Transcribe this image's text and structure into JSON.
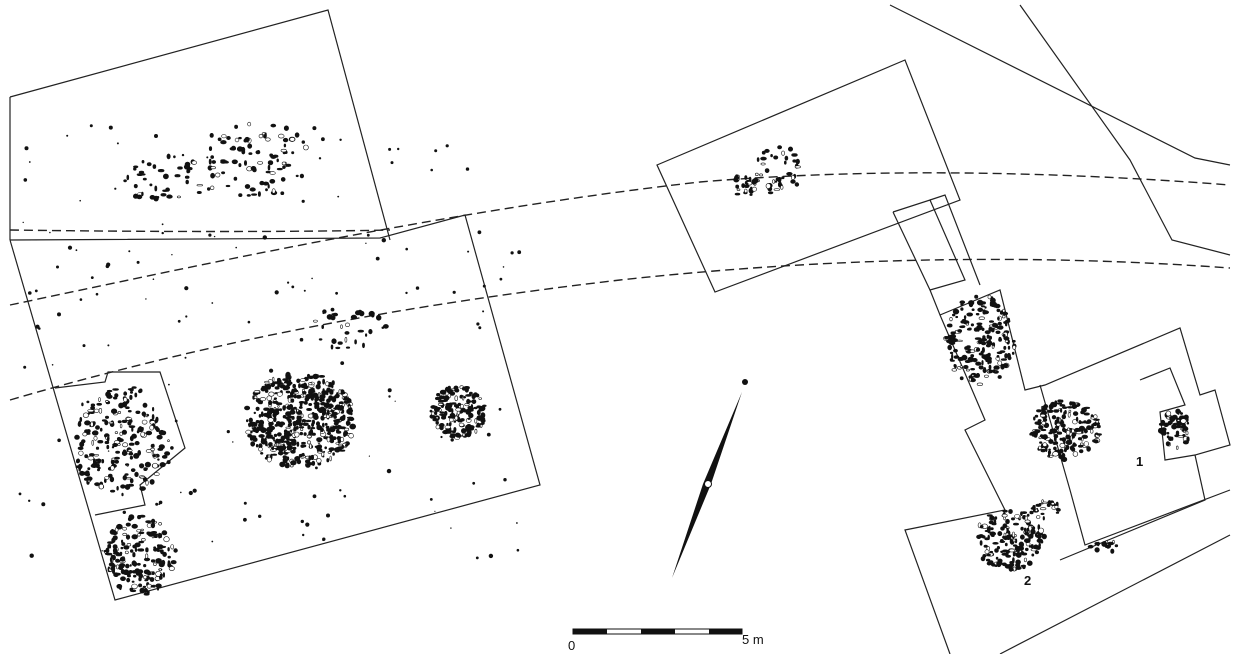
{
  "labels": {
    "area_1": "1",
    "area_2": "2"
  },
  "scale_bar": {
    "start": "0",
    "end": "5 m"
  }
}
